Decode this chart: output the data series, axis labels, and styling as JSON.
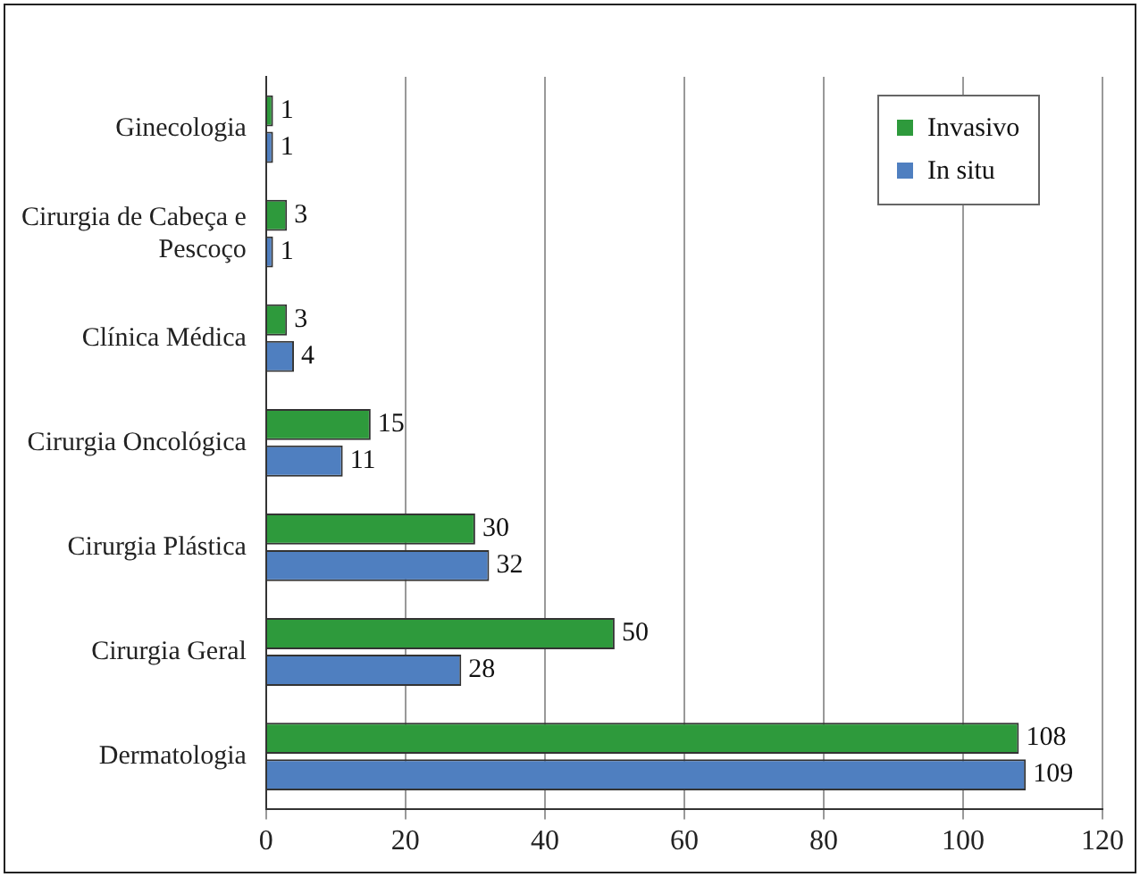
{
  "chart_data": {
    "type": "bar",
    "orientation": "horizontal",
    "categories": [
      "Ginecologia",
      "Cirurgia de Cabeça e Pescoço",
      "Clínica Médica",
      "Cirurgia Oncológica",
      "Cirurgia Plástica",
      "Cirurgia Geral",
      "Dermatologia"
    ],
    "series": [
      {
        "name": "Invasivo",
        "color": "#2e9a3c",
        "values": [
          1,
          3,
          3,
          15,
          30,
          50,
          108
        ]
      },
      {
        "name": "In situ",
        "color": "#4f7fc0",
        "values": [
          1,
          1,
          4,
          11,
          32,
          28,
          109
        ]
      }
    ],
    "xlim": [
      0,
      120
    ],
    "xticks": [
      0,
      20,
      40,
      60,
      80,
      100,
      120
    ],
    "grid": "x",
    "legend": "top right",
    "data_labels": true
  }
}
